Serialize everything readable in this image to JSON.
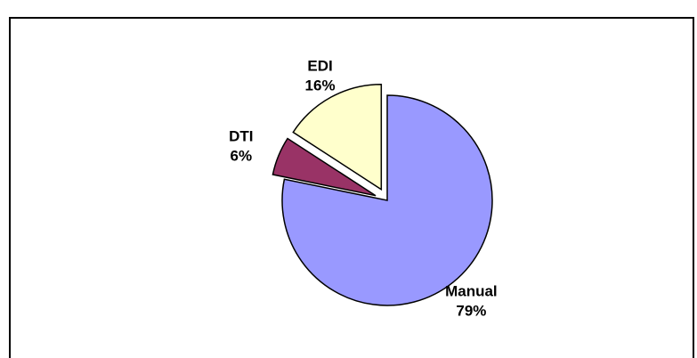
{
  "chart_data": {
    "type": "pie",
    "categories": [
      "Manual",
      "DTI",
      "EDI"
    ],
    "values": [
      79,
      6,
      16
    ],
    "value_labels": [
      "79%",
      "6%",
      "16%"
    ],
    "colors": [
      "#9999ff",
      "#993366",
      "#ffffcc"
    ],
    "exploded": [
      false,
      true,
      true
    ]
  }
}
